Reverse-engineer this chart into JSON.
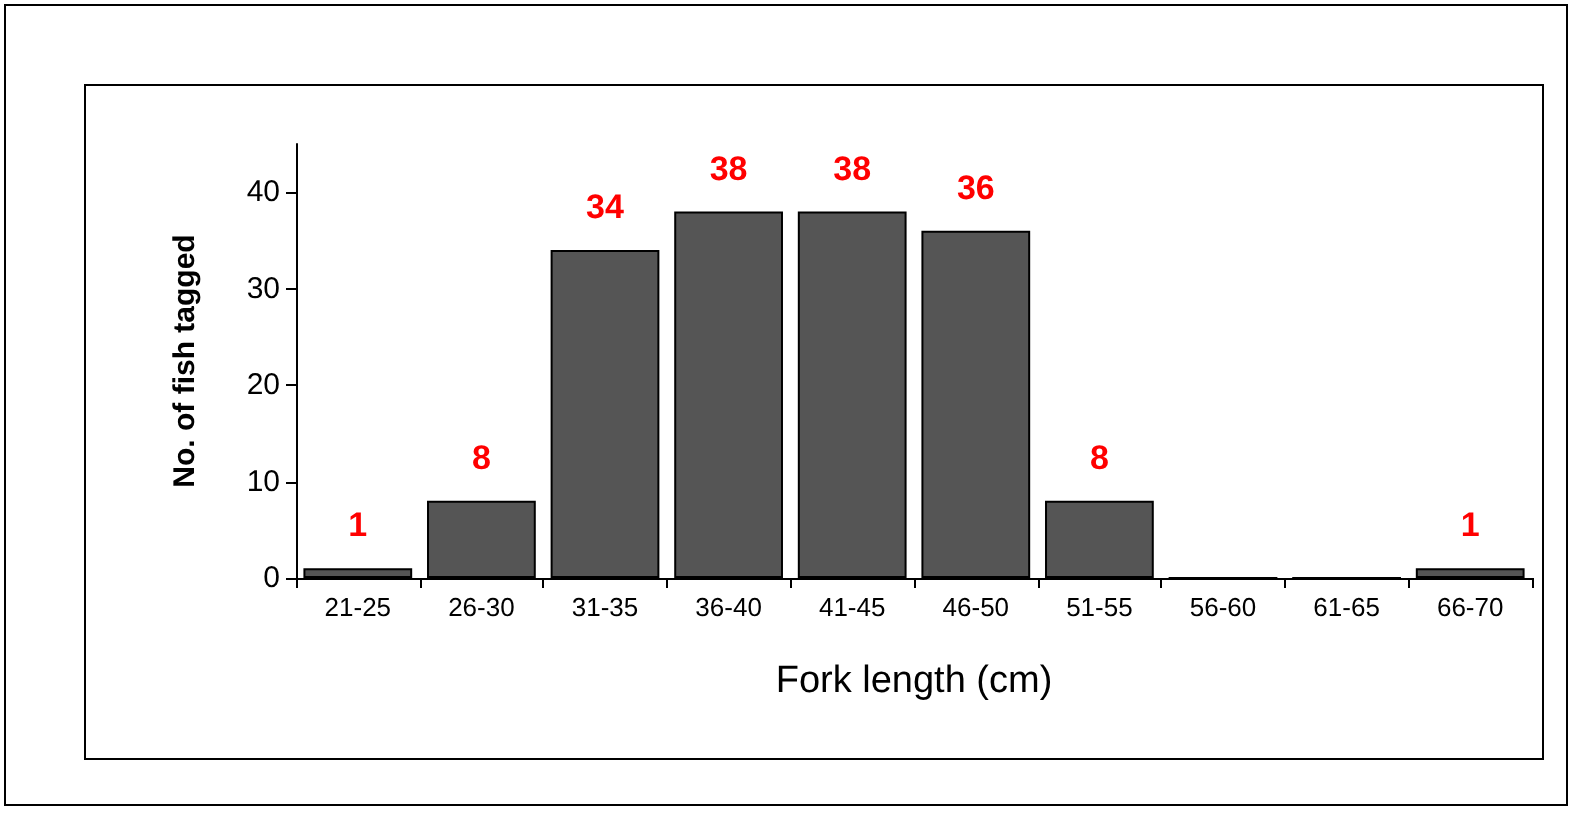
{
  "chart_data": {
    "type": "bar",
    "xlabel": "Fork length (cm)",
    "ylabel": "No. of fish tagged",
    "categories": [
      "21-25",
      "26-30",
      "31-35",
      "36-40",
      "41-45",
      "46-50",
      "51-55",
      "56-60",
      "61-65",
      "66-70"
    ],
    "values": [
      1,
      8,
      34,
      38,
      38,
      36,
      8,
      0,
      0,
      1
    ],
    "value_labels": [
      "1",
      "8",
      "34",
      "38",
      "38",
      "36",
      "8",
      null,
      null,
      "1"
    ],
    "color": "#555555",
    "ylim": [
      0,
      45
    ],
    "yticks": [
      0,
      10,
      20,
      30,
      40
    ],
    "grid": false
  }
}
